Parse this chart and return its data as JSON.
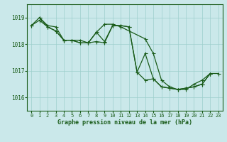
{
  "background_color": "#cae8ea",
  "grid_color": "#9dcfcc",
  "line_color": "#1a5c1a",
  "marker_color": "#1a5c1a",
  "xlabel": "Graphe pression niveau de la mer (hPa)",
  "xlabel_color": "#1a5c1a",
  "tick_color": "#1a5c1a",
  "ylim": [
    1015.5,
    1019.5
  ],
  "xlim": [
    -0.5,
    23.5
  ],
  "yticks": [
    1016,
    1017,
    1018,
    1019
  ],
  "xticks": [
    0,
    1,
    2,
    3,
    4,
    5,
    6,
    7,
    8,
    9,
    10,
    11,
    12,
    13,
    14,
    15,
    16,
    17,
    18,
    19,
    20,
    21,
    22,
    23
  ],
  "line1_x": [
    0,
    1,
    2,
    3,
    4,
    5,
    6,
    7,
    8,
    9,
    10,
    11,
    12,
    13,
    14,
    15,
    16,
    17,
    18,
    19,
    20,
    21,
    22
  ],
  "line1_y": [
    1018.7,
    1019.0,
    1018.7,
    1018.65,
    1018.15,
    1018.15,
    1018.05,
    1018.05,
    1018.1,
    1018.05,
    1018.7,
    1018.7,
    1018.65,
    1016.95,
    1016.65,
    1016.7,
    1016.4,
    1016.35,
    1016.3,
    1016.35,
    1016.4,
    1016.5,
    1016.9
  ],
  "line2_x": [
    0,
    1,
    2,
    3,
    4,
    5,
    6,
    7,
    8,
    9,
    10,
    11,
    12,
    13,
    14,
    15,
    16,
    17,
    18,
    19,
    20,
    21,
    22
  ],
  "line2_y": [
    1018.7,
    1018.9,
    1018.65,
    1018.5,
    1018.15,
    1018.15,
    1018.05,
    1018.05,
    1018.45,
    1018.1,
    1018.7,
    1018.7,
    1018.65,
    1016.95,
    1017.65,
    1016.7,
    1016.4,
    1016.35,
    1016.3,
    1016.35,
    1016.4,
    1016.5,
    1016.9
  ],
  "line3_x": [
    1,
    2,
    3,
    4,
    5,
    6,
    7,
    8,
    9,
    10,
    11,
    14,
    15,
    16,
    17,
    18,
    19,
    20,
    21,
    22,
    23
  ],
  "line3_y": [
    1019.0,
    1018.65,
    1018.5,
    1018.15,
    1018.15,
    1018.15,
    1018.05,
    1018.45,
    1018.75,
    1018.75,
    1018.65,
    1018.2,
    1017.65,
    1016.65,
    1016.4,
    1016.3,
    1016.3,
    1016.5,
    1016.65,
    1016.9,
    1016.9
  ]
}
